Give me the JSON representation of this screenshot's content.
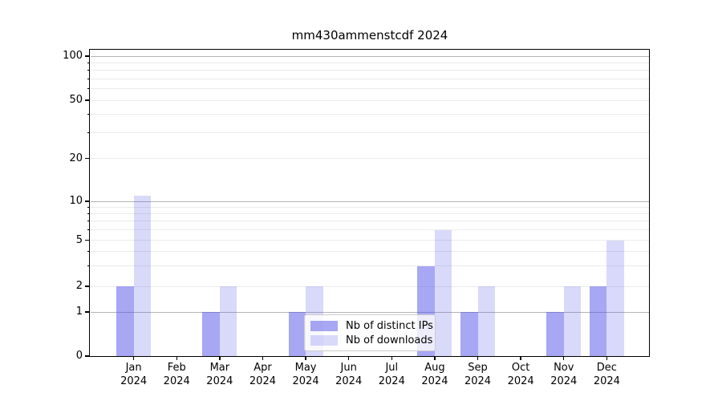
{
  "chart_data": {
    "type": "bar",
    "title": "mm430ammenstcdf 2024",
    "x": {
      "categories": [
        "Jan",
        "Feb",
        "Mar",
        "Apr",
        "May",
        "Jun",
        "Jul",
        "Aug",
        "Sep",
        "Oct",
        "Nov",
        "Dec"
      ],
      "year_label": "2024"
    },
    "series": [
      {
        "name": "Nb of distinct IPs",
        "color": "#5050e8",
        "alpha": 0.5,
        "values": [
          2,
          0,
          1,
          0,
          1,
          0,
          0,
          3,
          1,
          0,
          1,
          2
        ]
      },
      {
        "name": "Nb of downloads",
        "color": "#5050e8",
        "alpha": 0.22,
        "values": [
          11,
          0,
          2,
          0,
          2,
          0,
          0,
          6,
          2,
          0,
          2,
          5
        ]
      }
    ],
    "yaxis": {
      "scale": "log-with-zero",
      "ylim": [
        0,
        100
      ],
      "tick_labels": [
        0,
        1,
        2,
        5,
        10,
        20,
        50,
        100
      ],
      "major_gridlines": [
        1,
        10,
        100
      ],
      "minor_gridlines": [
        2,
        3,
        4,
        5,
        6,
        7,
        8,
        9,
        20,
        30,
        40,
        50,
        60,
        70,
        80,
        90
      ]
    },
    "legend": {
      "position": "lower center"
    },
    "colors": {
      "major_grid": "#b4b4b4",
      "minor_grid": "#ebebeb",
      "axis": "#000000",
      "background": "#ffffff"
    }
  }
}
